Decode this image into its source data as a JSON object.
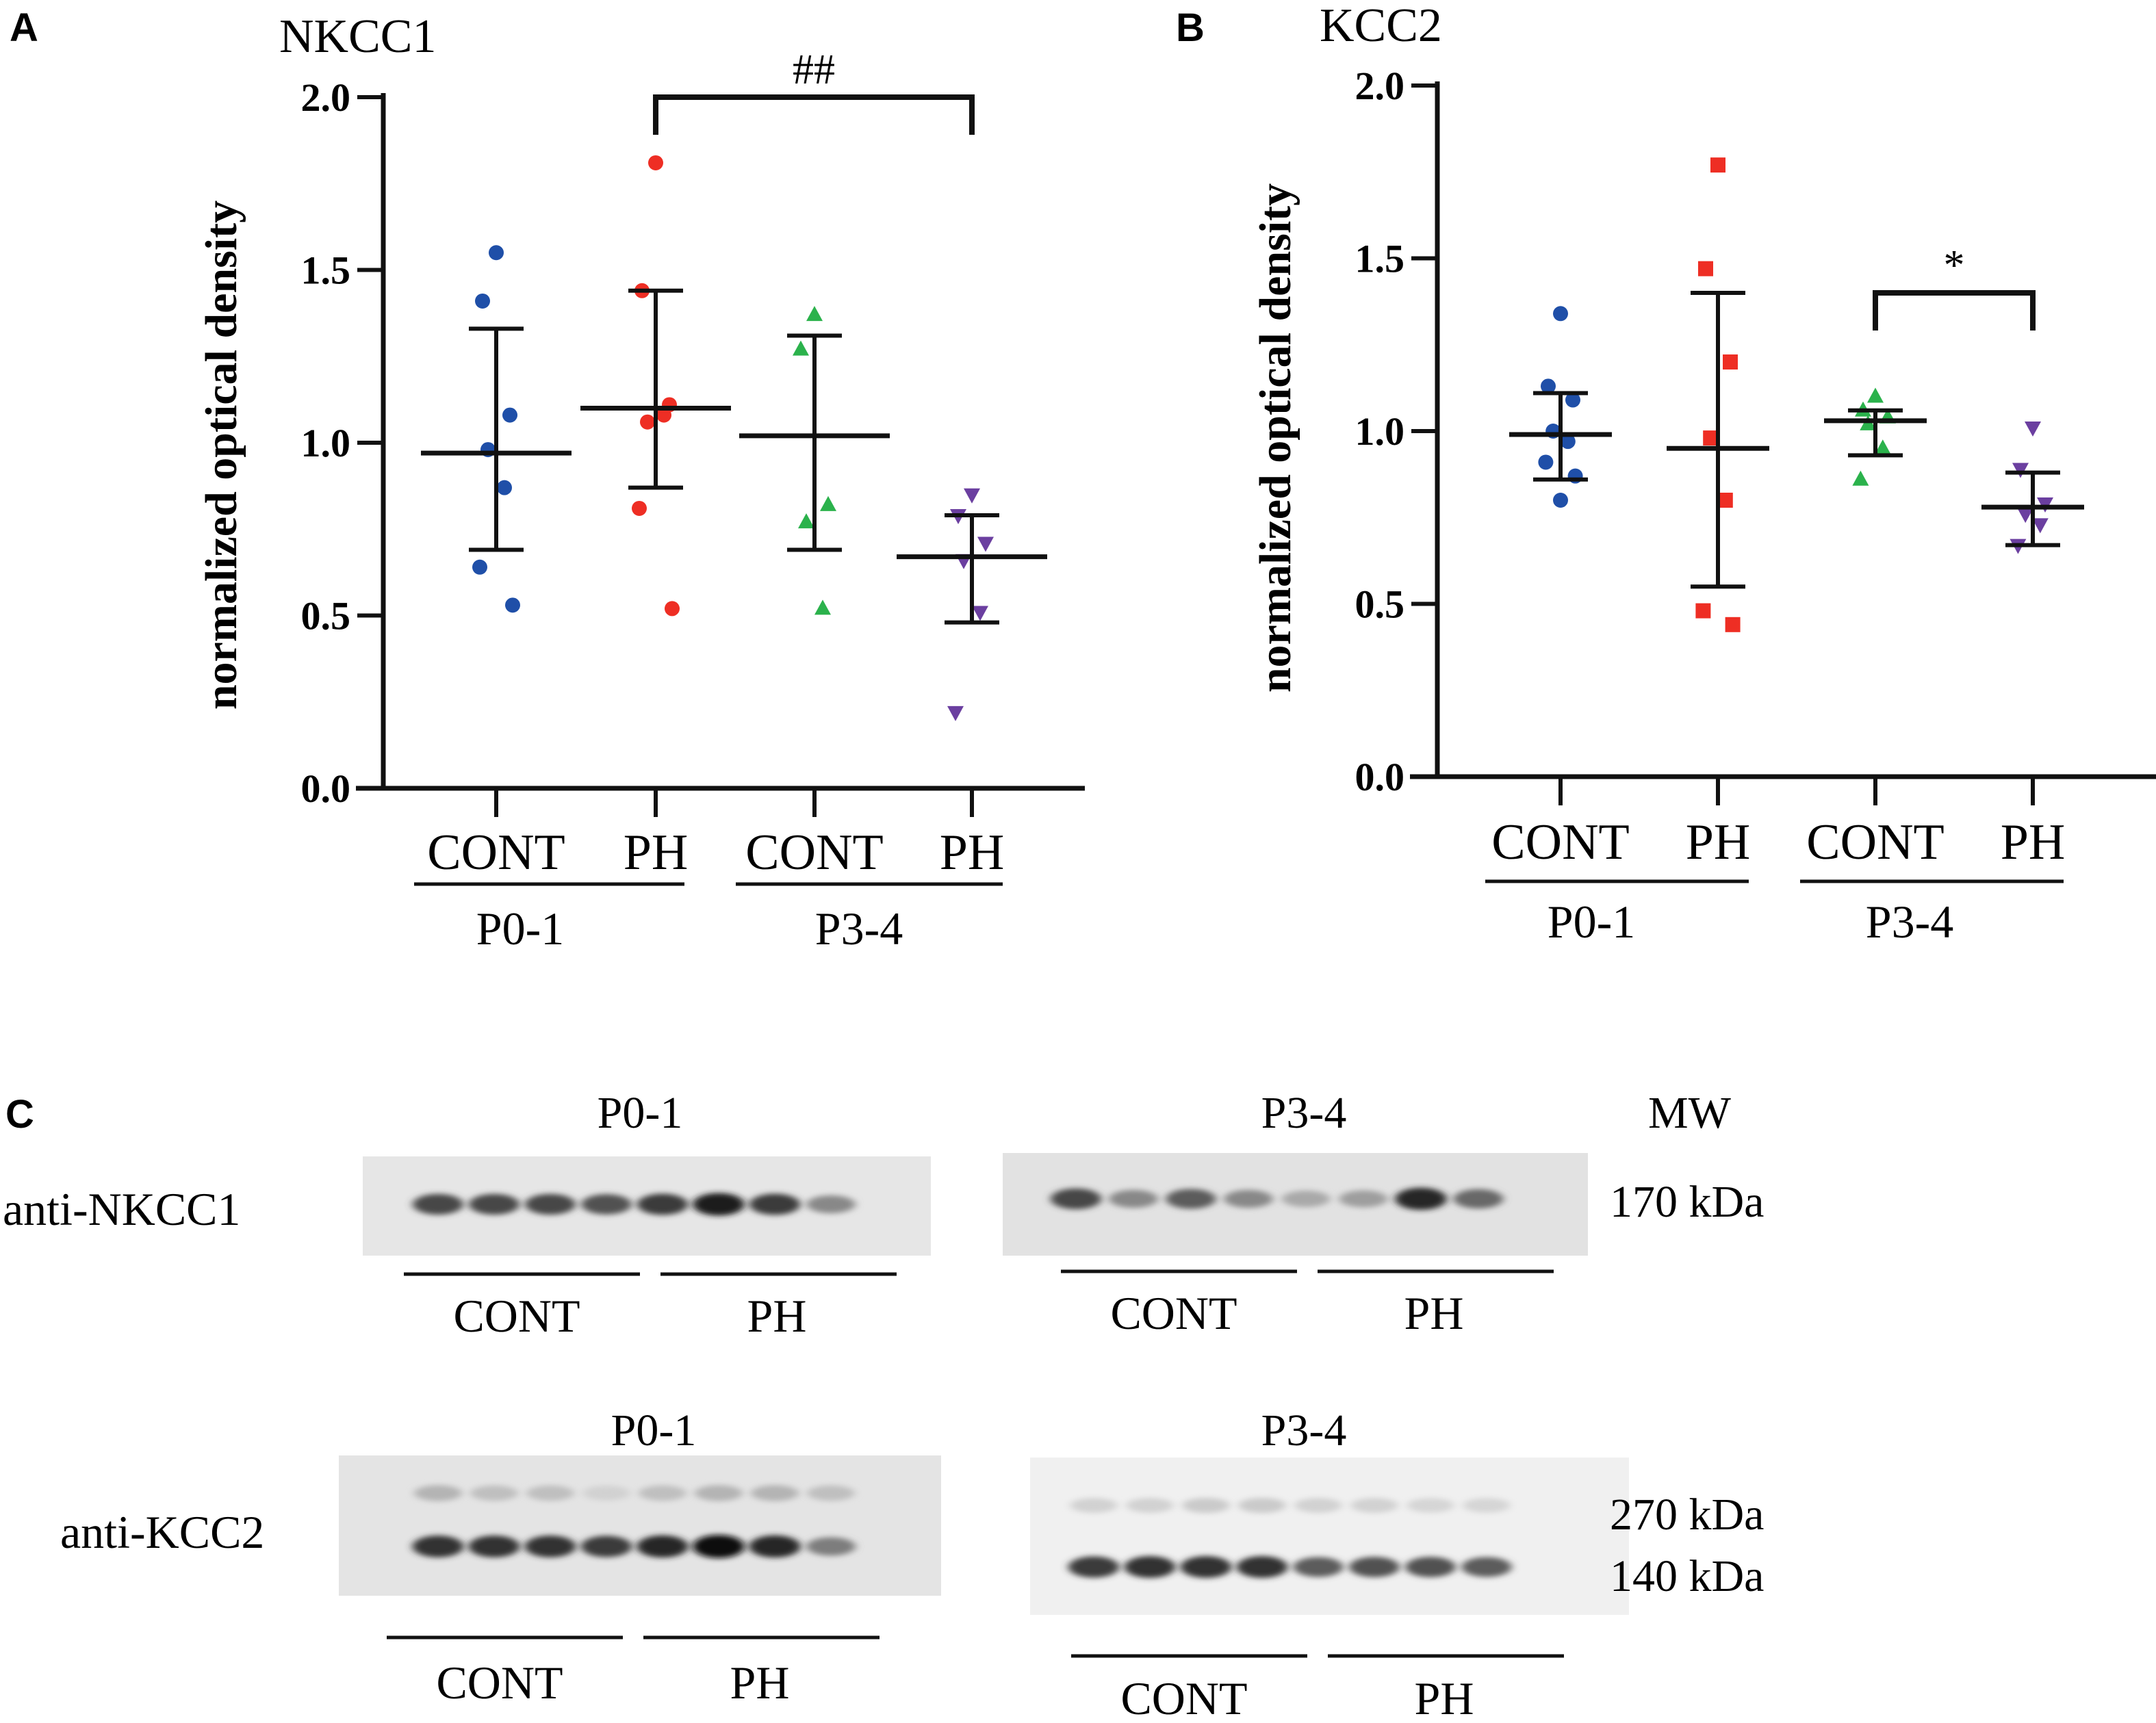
{
  "colors": {
    "p01_cont": "#1f4fa8",
    "p01_ph": "#ee2e24",
    "p34_cont": "#2bb24c",
    "p34_ph": "#6b3fa0",
    "axis": "#111111"
  },
  "chart_data": [
    {
      "type": "scatter",
      "panel": "A",
      "title": "NKCC1",
      "ylabel": "normalized optical density",
      "ylim": [
        0,
        2.0
      ],
      "yticks": [
        "0.0",
        "0.5",
        "1.0",
        "1.5",
        "2.0"
      ],
      "groups": [
        {
          "label": "CONT",
          "age": "P0-1",
          "marker": "circle",
          "color": "#1f4fa8",
          "values": [
            1.55,
            1.41,
            1.08,
            0.98,
            0.87,
            0.64,
            0.53
          ],
          "mean": 0.97,
          "sd_upper": 1.33,
          "sd_lower": 0.69
        },
        {
          "label": "PH",
          "age": "P0-1",
          "marker": "circle",
          "color": "#ee2e24",
          "values": [
            1.81,
            1.44,
            1.11,
            1.06,
            1.08,
            0.81,
            0.52
          ],
          "mean": 1.1,
          "sd_upper": 1.44,
          "sd_lower": 0.87
        },
        {
          "label": "CONT",
          "age": "P3-4",
          "marker": "triangle-up",
          "color": "#2bb24c",
          "values": [
            1.37,
            1.27,
            0.82,
            0.77,
            0.52
          ],
          "mean": 1.02,
          "sd_upper": 1.31,
          "sd_lower": 0.69
        },
        {
          "label": "PH",
          "age": "P3-4",
          "marker": "triangle-down",
          "color": "#6b3fa0",
          "values": [
            0.85,
            0.79,
            0.71,
            0.66,
            0.51,
            0.22
          ],
          "mean": 0.67,
          "sd_upper": 0.79,
          "sd_lower": 0.48
        }
      ],
      "age_labels": [
        "P0-1",
        "P3-4"
      ],
      "significance": [
        {
          "from_group": 1,
          "to_group": 3,
          "label": "##",
          "level": 2.0
        }
      ]
    },
    {
      "type": "scatter",
      "panel": "B",
      "title": "KCC2",
      "ylabel": "normalized optical density",
      "ylim": [
        0,
        2.0
      ],
      "yticks": [
        "0.0",
        "0.5",
        "1.0",
        "1.5",
        "2.0"
      ],
      "groups": [
        {
          "label": "CONT",
          "age": "P0-1",
          "marker": "circle",
          "color": "#1f4fa8",
          "values": [
            1.34,
            1.13,
            1.09,
            1.0,
            0.97,
            0.91,
            0.87,
            0.8
          ],
          "mean": 0.99,
          "sd_upper": 1.11,
          "sd_lower": 0.86
        },
        {
          "label": "PH",
          "age": "P0-1",
          "marker": "square",
          "color": "#ee2e24",
          "values": [
            1.77,
            1.47,
            1.2,
            0.98,
            0.8,
            0.48,
            0.44
          ],
          "mean": 0.95,
          "sd_upper": 1.4,
          "sd_lower": 0.55
        },
        {
          "label": "CONT",
          "age": "P3-4",
          "marker": "triangle-up",
          "color": "#2bb24c",
          "values": [
            1.1,
            1.06,
            1.04,
            1.02,
            0.95,
            0.86
          ],
          "mean": 1.03,
          "sd_upper": 1.06,
          "sd_lower": 0.93
        },
        {
          "label": "PH",
          "age": "P3-4",
          "marker": "triangle-down",
          "color": "#6b3fa0",
          "values": [
            1.01,
            0.89,
            0.79,
            0.76,
            0.73,
            0.67
          ],
          "mean": 0.78,
          "sd_upper": 0.88,
          "sd_lower": 0.67
        }
      ],
      "age_labels": [
        "P0-1",
        "P3-4"
      ],
      "significance": [
        {
          "from_group": 2,
          "to_group": 3,
          "label": "*",
          "level": 1.4
        }
      ]
    }
  ],
  "panel_c": {
    "letter": "C",
    "mw_header": "MW",
    "rows": [
      {
        "antibody": "anti-NKCC1",
        "blots": [
          {
            "age": "P0-1",
            "cont_label": "CONT",
            "ph_label": "PH",
            "bands": [
              {
                "lane_intensity": [
                  0.75,
                  0.75,
                  0.75,
                  0.7,
                  0.8,
                  0.95,
                  0.8,
                  0.45
                ]
              }
            ]
          },
          {
            "age": "P3-4",
            "cont_label": "CONT",
            "ph_label": "PH",
            "bands": [
              {
                "lane_intensity": [
                  0.75,
                  0.45,
                  0.65,
                  0.45,
                  0.3,
                  0.35,
                  0.9,
                  0.6
                ]
              }
            ]
          }
        ],
        "mw_labels": [
          "170 kDa"
        ]
      },
      {
        "antibody": "anti-KCC2",
        "blots": [
          {
            "age": "P0-1",
            "cont_label": "CONT",
            "ph_label": "PH",
            "bands": [
              {
                "lane_intensity": [
                  0.25,
                  0.2,
                  0.2,
                  0.12,
                  0.2,
                  0.25,
                  0.25,
                  0.2
                ]
              },
              {
                "lane_intensity": [
                  0.85,
                  0.85,
                  0.85,
                  0.8,
                  0.9,
                  1.0,
                  0.9,
                  0.5
                ]
              }
            ]
          },
          {
            "age": "P3-4",
            "cont_label": "CONT",
            "ph_label": "PH",
            "bands": [
              {
                "lane_intensity": [
                  0.12,
                  0.12,
                  0.15,
                  0.15,
                  0.12,
                  0.12,
                  0.1,
                  0.1
                ]
              },
              {
                "lane_intensity": [
                  0.8,
                  0.85,
                  0.85,
                  0.85,
                  0.65,
                  0.7,
                  0.7,
                  0.65
                ]
              }
            ]
          }
        ],
        "mw_labels": [
          "270 kDa",
          "140 kDa"
        ]
      }
    ]
  }
}
